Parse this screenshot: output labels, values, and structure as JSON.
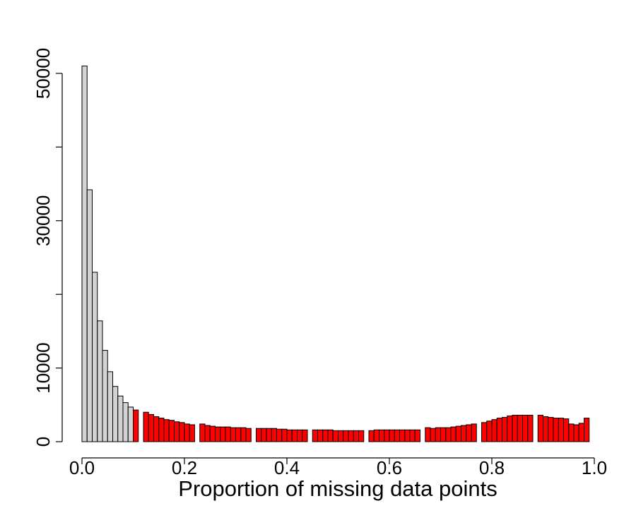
{
  "chart_data": {
    "type": "bar",
    "title": "",
    "xlabel": "Proportion of missing data points",
    "ylabel": "",
    "bin_width": 0.01,
    "xlim": [
      0.0,
      1.0
    ],
    "ylim": [
      0,
      50000
    ],
    "x_ticks": [
      0.0,
      0.2,
      0.4,
      0.6,
      0.8,
      1.0
    ],
    "x_tick_labels": [
      "0.0",
      "0.2",
      "0.4",
      "0.6",
      "0.8",
      "1.0"
    ],
    "y_ticks": [
      0,
      10000,
      20000,
      30000,
      40000,
      50000
    ],
    "y_tick_labels": [
      "0",
      "10000",
      "",
      "30000",
      "",
      "50000"
    ],
    "grid": false,
    "colors": {
      "kept": "#d3d3d3",
      "excluded": "#ff0000",
      "outline": "#000000"
    },
    "series": [
      {
        "color": "#d3d3d3",
        "bin_starts": [
          0.0,
          0.01,
          0.02,
          0.03,
          0.04,
          0.05,
          0.06,
          0.07,
          0.08,
          0.09
        ],
        "values": [
          51000,
          34200,
          23000,
          16400,
          12400,
          9500,
          7500,
          6200,
          5300,
          4700
        ]
      },
      {
        "color": "#ff0000",
        "bin_starts": [
          0.1,
          0.12,
          0.13,
          0.14,
          0.15,
          0.16,
          0.17,
          0.18,
          0.19,
          0.2,
          0.21,
          0.23,
          0.24,
          0.25,
          0.26,
          0.27,
          0.28,
          0.29,
          0.3,
          0.31,
          0.32,
          0.34,
          0.35,
          0.36,
          0.37,
          0.38,
          0.39,
          0.4,
          0.41,
          0.42,
          0.43,
          0.45,
          0.46,
          0.47,
          0.48,
          0.49,
          0.5,
          0.51,
          0.52,
          0.53,
          0.54,
          0.56,
          0.57,
          0.58,
          0.59,
          0.6,
          0.61,
          0.62,
          0.63,
          0.64,
          0.65,
          0.67,
          0.68,
          0.69,
          0.7,
          0.71,
          0.72,
          0.73,
          0.74,
          0.75,
          0.76,
          0.78,
          0.79,
          0.8,
          0.81,
          0.82,
          0.83,
          0.84,
          0.85,
          0.86,
          0.87,
          0.89,
          0.9,
          0.91,
          0.92,
          0.93,
          0.94,
          0.95,
          0.96,
          0.97,
          0.98
        ],
        "values": [
          4300,
          4000,
          3700,
          3400,
          3200,
          3000,
          2900,
          2700,
          2600,
          2400,
          2300,
          2400,
          2200,
          2100,
          2000,
          2000,
          2000,
          1900,
          1900,
          1900,
          1800,
          1800,
          1800,
          1800,
          1800,
          1700,
          1700,
          1600,
          1600,
          1600,
          1600,
          1600,
          1600,
          1600,
          1600,
          1500,
          1500,
          1500,
          1500,
          1500,
          1500,
          1500,
          1600,
          1600,
          1600,
          1600,
          1600,
          1600,
          1600,
          1600,
          1600,
          1900,
          1800,
          1900,
          1900,
          1900,
          2000,
          2100,
          2200,
          2300,
          2400,
          2600,
          2800,
          3000,
          3200,
          3300,
          3500,
          3600,
          3600,
          3600,
          3600,
          3600,
          3400,
          3300,
          3200,
          3200,
          3100,
          2400,
          2300,
          2500,
          3200
        ]
      }
    ]
  }
}
